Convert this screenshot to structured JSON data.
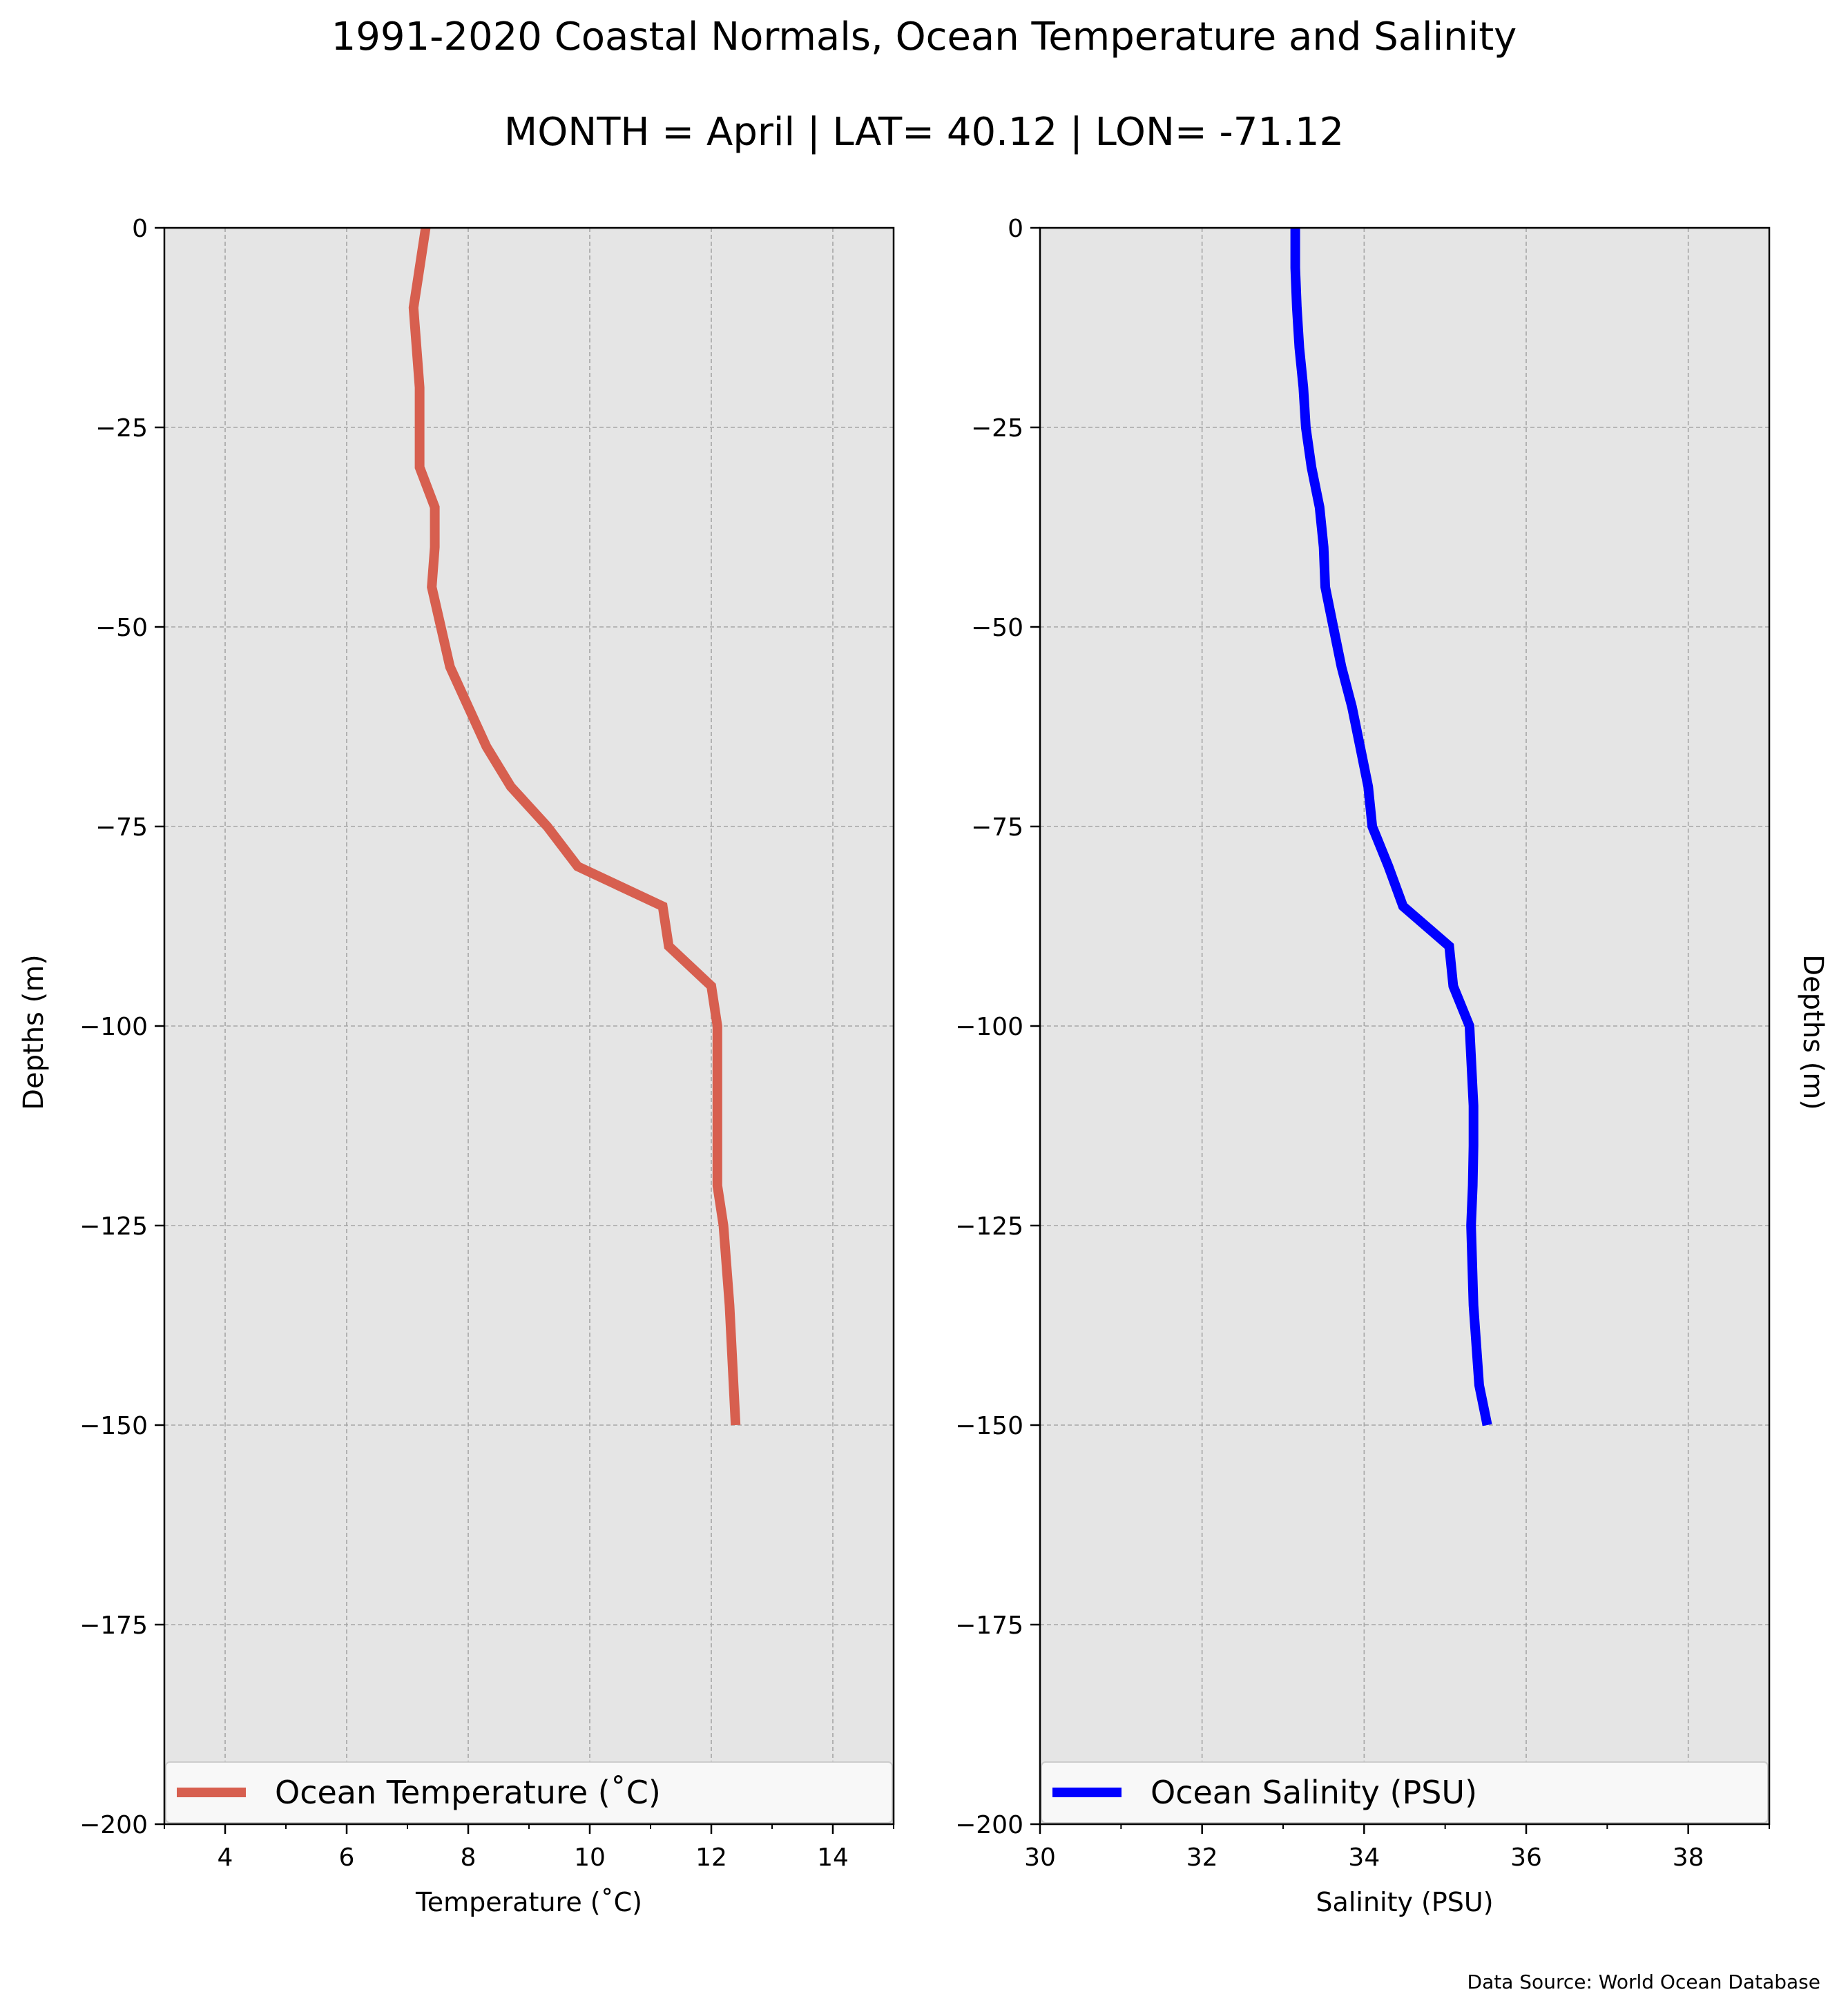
{
  "figure": {
    "title": "1991-2020 Coastal Normals, Ocean Temperature and Salinity",
    "subtitle": "MONTH = April | LAT= 40.12 | LON= -71.12",
    "source_note": "Data Source: World Ocean Database",
    "left_ylabel": "Depths (m)",
    "right_ylabel": "Depths (m)"
  },
  "colors": {
    "panel_bg": "#e5e5e5",
    "grid": "#a6a6a6",
    "temperature": "#d75f4f",
    "salinity": "#0000ff",
    "axis": "#000000"
  },
  "chart_data": [
    {
      "type": "line",
      "xlabel": "Temperature (˚C)",
      "ylabel": "Depths (m)",
      "xlim": [
        3,
        15
      ],
      "ylim": [
        -200,
        0
      ],
      "x_ticks": [
        4,
        6,
        8,
        10,
        12,
        14
      ],
      "x_minor_ticks": [
        3,
        5,
        7,
        9,
        11,
        13,
        15
      ],
      "y_ticks": [
        0,
        -25,
        -50,
        -75,
        -100,
        -125,
        -150,
        -175,
        -200
      ],
      "grid": true,
      "legend_position": "bottom",
      "series": [
        {
          "name": "Ocean Temperature (˚C)",
          "x": [
            7.3,
            7.2,
            7.1,
            7.15,
            7.2,
            7.2,
            7.2,
            7.2,
            7.45,
            7.45,
            7.4,
            7.7,
            8.0,
            8.3,
            8.7,
            9.3,
            9.8,
            11.2,
            11.3,
            12.0,
            12.1,
            12.1,
            12.1,
            12.1,
            12.1,
            12.2,
            12.3,
            12.4
          ],
          "y": [
            0,
            -5,
            -10,
            -15,
            -20,
            -25,
            -30,
            -30,
            -35,
            -40,
            -45,
            -55,
            -60,
            -65,
            -70,
            -75,
            -80,
            -85,
            -90,
            -95,
            -100,
            -105,
            -110,
            -115,
            -120,
            -125,
            -135,
            -150
          ]
        }
      ]
    },
    {
      "type": "line",
      "xlabel": "Salinity (PSU)",
      "ylabel": "Depths (m)",
      "xlim": [
        30,
        39
      ],
      "ylim": [
        -200,
        0
      ],
      "x_ticks": [
        30,
        32,
        34,
        36,
        38
      ],
      "x_minor_ticks": [
        31,
        33,
        35,
        37,
        39
      ],
      "y_ticks": [
        0,
        -25,
        -50,
        -75,
        -100,
        -125,
        -150,
        -175,
        -200
      ],
      "grid": true,
      "legend_position": "bottom",
      "series": [
        {
          "name": "Ocean Salinity (PSU)",
          "x": [
            33.15,
            33.15,
            33.17,
            33.2,
            33.25,
            33.28,
            33.35,
            33.45,
            33.5,
            33.52,
            33.62,
            33.72,
            33.85,
            33.95,
            34.05,
            34.1,
            34.3,
            34.48,
            35.05,
            35.1,
            35.3,
            35.35,
            35.35,
            35.34,
            35.32,
            35.35,
            35.42,
            35.52
          ],
          "y": [
            0,
            -5,
            -10,
            -15,
            -20,
            -25,
            -30,
            -35,
            -40,
            -45,
            -50,
            -55,
            -60,
            -65,
            -70,
            -75,
            -80,
            -85,
            -90,
            -95,
            -100,
            -110,
            -115,
            -120,
            -125,
            -135,
            -145,
            -150
          ]
        }
      ]
    }
  ]
}
